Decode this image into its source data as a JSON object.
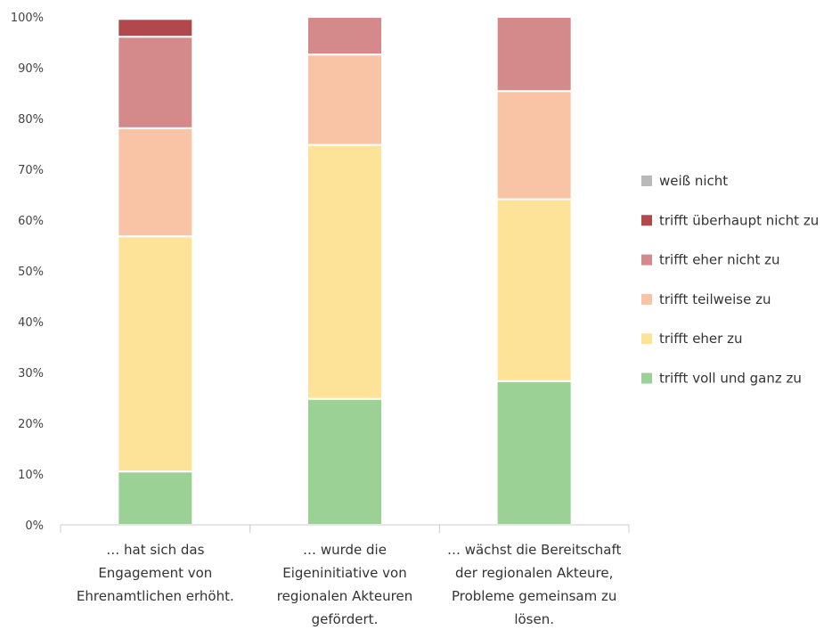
{
  "chart_data": {
    "type": "bar",
    "stacked": true,
    "categories": [
      [
        "… hat sich das",
        "Engagement von",
        "Ehrenamtlichen erhöht."
      ],
      [
        "… wurde die",
        "Eigeninitiative von",
        "regionalen Akteuren",
        "gefördert."
      ],
      [
        "… wächst die Bereitschaft",
        "der regionalen Akteure,",
        "Probleme gemeinsam zu",
        "lösen."
      ]
    ],
    "series": [
      {
        "name": "trifft voll und ganz zu",
        "color": "#9bd194",
        "values": [
          10.5,
          24.8,
          28.3
        ]
      },
      {
        "name": "trifft eher zu",
        "color": "#fde398",
        "values": [
          46.3,
          50.0,
          35.8
        ]
      },
      {
        "name": "trifft teilweise zu",
        "color": "#f9c4a5",
        "values": [
          21.3,
          17.8,
          21.3
        ]
      },
      {
        "name": "trifft eher nicht zu",
        "color": "#d4898b",
        "values": [
          18.0,
          7.4,
          14.6
        ]
      },
      {
        "name": "trifft überhaupt nicht zu",
        "color": "#b1484b",
        "values": [
          3.5,
          0,
          0
        ]
      },
      {
        "name": "weiß nicht",
        "color": "#b9b9b9",
        "values": [
          0,
          0,
          0
        ]
      }
    ],
    "legend_order": [
      "weiß nicht",
      "trifft überhaupt nicht zu",
      "trifft eher nicht zu",
      "trifft teilweise zu",
      "trifft eher zu",
      "trifft voll und ganz zu"
    ],
    "y_ticks": [
      "0%",
      "10%",
      "20%",
      "30%",
      "40%",
      "50%",
      "60%",
      "70%",
      "80%",
      "90%",
      "100%"
    ],
    "ylim": [
      0,
      100
    ],
    "grid": false,
    "legend_position": "right"
  }
}
